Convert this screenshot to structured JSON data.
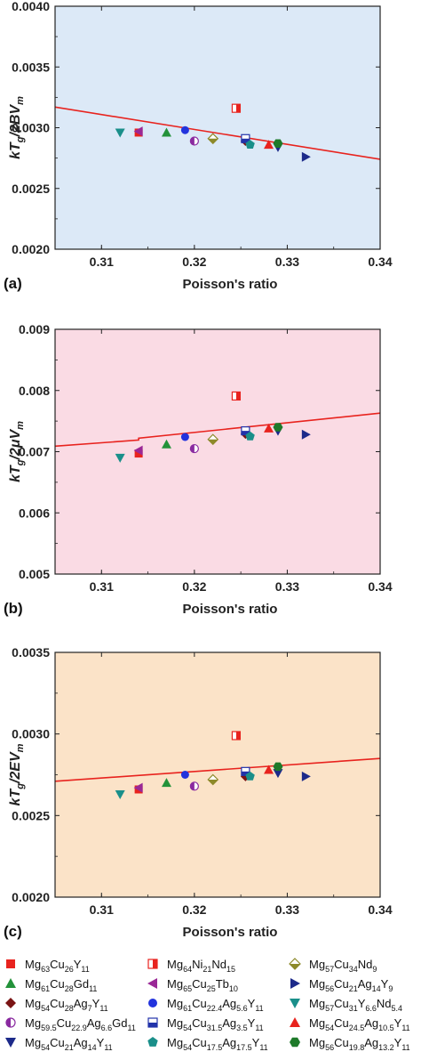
{
  "chart_data": [
    {
      "type": "scatter",
      "panel_label": "(a)",
      "background": "#dce9f7",
      "ylabel": "kTg/2BVm",
      "ylabel_main": "kT",
      "ylabel_sub": "g",
      "ylabel_mid": "/2BV",
      "ylabel_sub2": "m",
      "xlabel": "Poisson's ratio",
      "xlim": [
        0.305,
        0.34
      ],
      "ylim": [
        0.002,
        0.004
      ],
      "xticks": [
        "0.31",
        "0.32",
        "0.33",
        "0.34"
      ],
      "xtick_values": [
        0.31,
        0.32,
        0.33,
        0.34
      ],
      "yticks": [
        "0.0020",
        "0.0025",
        "0.0030",
        "0.0035",
        "0.0040"
      ],
      "ytick_values": [
        0.002,
        0.0025,
        0.003,
        0.0035,
        0.004
      ],
      "fit_line": {
        "x": [
          0.305,
          0.34
        ],
        "y": [
          0.00317,
          0.00274
        ],
        "color": "#e8231e"
      },
      "points": [
        [
          0.314,
          0.00296
        ],
        [
          0.3245,
          0.00316
        ],
        [
          0.322,
          0.00291
        ],
        [
          0.317,
          0.00296
        ],
        [
          0.314,
          0.00297
        ],
        [
          0.332,
          0.00276
        ],
        [
          0.3255,
          0.00289
        ],
        [
          0.319,
          0.00298
        ],
        [
          0.312,
          0.00296
        ],
        [
          0.32,
          0.00289
        ],
        [
          0.3255,
          0.00291
        ],
        [
          0.328,
          0.00286
        ],
        [
          0.329,
          0.00284
        ],
        [
          0.326,
          0.00286
        ],
        [
          0.329,
          0.00287
        ]
      ]
    },
    {
      "type": "scatter",
      "panel_label": "(b)",
      "background": "#fadbe4",
      "ylabel": "kTg/2μVm",
      "ylabel_main": "kT",
      "ylabel_sub": "g",
      "ylabel_mid": "/2μV",
      "ylabel_sub2": "m",
      "xlabel": "Poisson's ratio",
      "xlim": [
        0.305,
        0.34
      ],
      "ylim": [
        0.005,
        0.009
      ],
      "xticks": [
        "0.31",
        "0.32",
        "0.33",
        "0.34"
      ],
      "xtick_values": [
        0.31,
        0.32,
        0.33,
        0.34
      ],
      "yticks": [
        "0.005",
        "0.006",
        "0.007",
        "0.008",
        "0.009"
      ],
      "ytick_values": [
        0.005,
        0.006,
        0.007,
        0.008,
        0.009
      ],
      "fit_line": {
        "x": [
          0.305,
          0.314,
          0.314,
          0.34
        ],
        "y": [
          0.00709,
          0.00719,
          0.00722,
          0.00763
        ],
        "color": "#e8231e"
      },
      "points": [
        [
          0.314,
          0.00697
        ],
        [
          0.3245,
          0.00791
        ],
        [
          0.322,
          0.0072
        ],
        [
          0.317,
          0.00712
        ],
        [
          0.314,
          0.00702
        ],
        [
          0.332,
          0.00728
        ],
        [
          0.3255,
          0.00729
        ],
        [
          0.319,
          0.00724
        ],
        [
          0.312,
          0.0069
        ],
        [
          0.32,
          0.00705
        ],
        [
          0.3255,
          0.00734
        ],
        [
          0.328,
          0.00738
        ],
        [
          0.329,
          0.00734
        ],
        [
          0.326,
          0.00725
        ],
        [
          0.329,
          0.0074
        ]
      ]
    },
    {
      "type": "scatter",
      "panel_label": "(c)",
      "background": "#fbe3c8",
      "ylabel": "kTg/2EVm",
      "ylabel_main": "kT",
      "ylabel_sub": "g",
      "ylabel_mid": "/2EV",
      "ylabel_sub2": "m",
      "xlabel": "Poisson's ratio",
      "xlim": [
        0.305,
        0.34
      ],
      "ylim": [
        0.002,
        0.0035
      ],
      "xticks": [
        "0.31",
        "0.32",
        "0.33",
        "0.34"
      ],
      "xtick_values": [
        0.31,
        0.32,
        0.33,
        0.34
      ],
      "yticks": [
        "0.0020",
        "0.0025",
        "0.0030",
        "0.0035"
      ],
      "ytick_values": [
        0.002,
        0.0025,
        0.003,
        0.0035
      ],
      "fit_line": {
        "x": [
          0.305,
          0.34
        ],
        "y": [
          0.00271,
          0.00285
        ],
        "color": "#e8231e"
      },
      "points": [
        [
          0.314,
          0.00266
        ],
        [
          0.3245,
          0.00299
        ],
        [
          0.322,
          0.00272
        ],
        [
          0.317,
          0.0027
        ],
        [
          0.314,
          0.00267
        ],
        [
          0.332,
          0.00274
        ],
        [
          0.3255,
          0.00274
        ],
        [
          0.319,
          0.00275
        ],
        [
          0.312,
          0.00263
        ],
        [
          0.32,
          0.00268
        ],
        [
          0.3255,
          0.00277
        ],
        [
          0.328,
          0.00278
        ],
        [
          0.329,
          0.00276
        ],
        [
          0.326,
          0.00274
        ],
        [
          0.329,
          0.0028
        ]
      ]
    }
  ],
  "legend": {
    "entries": [
      {
        "marker": "square",
        "color": "#e8231e",
        "label": [
          [
            "Mg",
            ""
          ],
          [
            "63",
            "sub"
          ],
          [
            "Cu",
            ""
          ],
          [
            "26",
            "sub"
          ],
          [
            "Y",
            ""
          ],
          [
            "11",
            "sub"
          ]
        ]
      },
      {
        "marker": "square-half-h",
        "color": "#e8231e",
        "label": [
          [
            "Mg",
            ""
          ],
          [
            "64",
            "sub"
          ],
          [
            "Ni",
            ""
          ],
          [
            "21",
            "sub"
          ],
          [
            "Nd",
            ""
          ],
          [
            "15",
            "sub"
          ]
        ]
      },
      {
        "marker": "diamond-half",
        "color": "#8d8a2a",
        "label": [
          [
            "Mg",
            ""
          ],
          [
            "57",
            "sub"
          ],
          [
            "Cu",
            ""
          ],
          [
            "34",
            "sub"
          ],
          [
            "Nd",
            ""
          ],
          [
            "9",
            "sub"
          ]
        ]
      },
      {
        "marker": "triangle-up",
        "color": "#23923a",
        "label": [
          [
            "Mg",
            ""
          ],
          [
            "61",
            "sub"
          ],
          [
            "Cu",
            ""
          ],
          [
            "28",
            "sub"
          ],
          [
            "Gd",
            ""
          ],
          [
            "11",
            "sub"
          ]
        ]
      },
      {
        "marker": "triangle-left",
        "color": "#9a2896",
        "label": [
          [
            "Mg",
            ""
          ],
          [
            "65",
            "sub"
          ],
          [
            "Cu",
            ""
          ],
          [
            "25",
            "sub"
          ],
          [
            "Tb",
            ""
          ],
          [
            "10",
            "sub"
          ]
        ]
      },
      {
        "marker": "triangle-right",
        "color": "#1c2a8a",
        "label": [
          [
            "Mg",
            ""
          ],
          [
            "56",
            "sub"
          ],
          [
            "Cu",
            ""
          ],
          [
            "21",
            "sub"
          ],
          [
            "Ag",
            ""
          ],
          [
            "14",
            "sub"
          ],
          [
            "Y",
            ""
          ],
          [
            "9",
            "sub"
          ]
        ]
      },
      {
        "marker": "diamond",
        "color": "#7a1414",
        "label": [
          [
            "Mg",
            ""
          ],
          [
            "54",
            "sub"
          ],
          [
            "Cu",
            ""
          ],
          [
            "28",
            "sub"
          ],
          [
            "Ag",
            ""
          ],
          [
            "7",
            "sub"
          ],
          [
            "Y",
            ""
          ],
          [
            "11",
            "sub"
          ]
        ]
      },
      {
        "marker": "circle",
        "color": "#2233dd",
        "label": [
          [
            "Mg",
            ""
          ],
          [
            "61",
            "sub"
          ],
          [
            "Cu",
            ""
          ],
          [
            "22.4",
            "sub"
          ],
          [
            "Ag",
            ""
          ],
          [
            "5.6",
            "sub"
          ],
          [
            "Y",
            ""
          ],
          [
            "11",
            "sub"
          ]
        ]
      },
      {
        "marker": "triangle-down",
        "color": "#1a8f8a",
        "label": [
          [
            "Mg",
            ""
          ],
          [
            "57",
            "sub"
          ],
          [
            "Cu",
            ""
          ],
          [
            "31",
            "sub"
          ],
          [
            "Y",
            ""
          ],
          [
            "6.6",
            "sub"
          ],
          [
            "Nd",
            ""
          ],
          [
            "5.4",
            "sub"
          ]
        ]
      },
      {
        "marker": "circle-half",
        "color": "#8a2aa0",
        "label": [
          [
            "Mg",
            ""
          ],
          [
            "59.5",
            "sub"
          ],
          [
            "Cu",
            ""
          ],
          [
            "22.9",
            "sub"
          ],
          [
            "Ag",
            ""
          ],
          [
            "6.6",
            "sub"
          ],
          [
            "Gd",
            ""
          ],
          [
            "11",
            "sub"
          ]
        ]
      },
      {
        "marker": "square-half-v",
        "color": "#2233aa",
        "label": [
          [
            "Mg",
            ""
          ],
          [
            "54",
            "sub"
          ],
          [
            "Cu",
            ""
          ],
          [
            "31.5",
            "sub"
          ],
          [
            "Ag",
            ""
          ],
          [
            "3.5",
            "sub"
          ],
          [
            "Y",
            ""
          ],
          [
            "11",
            "sub"
          ]
        ]
      },
      {
        "marker": "triangle-up",
        "color": "#e8231e",
        "label": [
          [
            "Mg",
            ""
          ],
          [
            "54",
            "sub"
          ],
          [
            "Cu",
            ""
          ],
          [
            "24.5",
            "sub"
          ],
          [
            "Ag",
            ""
          ],
          [
            "10.5",
            "sub"
          ],
          [
            "Y",
            ""
          ],
          [
            "11",
            "sub"
          ]
        ]
      },
      {
        "marker": "triangle-down",
        "color": "#1c2a8a",
        "label": [
          [
            "Mg",
            ""
          ],
          [
            "54",
            "sub"
          ],
          [
            "Cu",
            ""
          ],
          [
            "21",
            "sub"
          ],
          [
            "Ag",
            ""
          ],
          [
            "14",
            "sub"
          ],
          [
            "Y",
            ""
          ],
          [
            "11",
            "sub"
          ]
        ]
      },
      {
        "marker": "pentagon",
        "color": "#1a8f8a",
        "label": [
          [
            "Mg",
            ""
          ],
          [
            "54",
            "sub"
          ],
          [
            "Cu",
            ""
          ],
          [
            "17.5",
            "sub"
          ],
          [
            "Ag",
            ""
          ],
          [
            "17.5",
            "sub"
          ],
          [
            "Y",
            ""
          ],
          [
            "11",
            "sub"
          ]
        ]
      },
      {
        "marker": "hexagon",
        "color": "#1e7a2a",
        "label": [
          [
            "Mg",
            ""
          ],
          [
            "56",
            "sub"
          ],
          [
            "Cu",
            ""
          ],
          [
            "19.8",
            "sub"
          ],
          [
            "Ag",
            ""
          ],
          [
            "13.2",
            "sub"
          ],
          [
            "Y",
            ""
          ],
          [
            "11",
            "sub"
          ]
        ]
      }
    ]
  }
}
